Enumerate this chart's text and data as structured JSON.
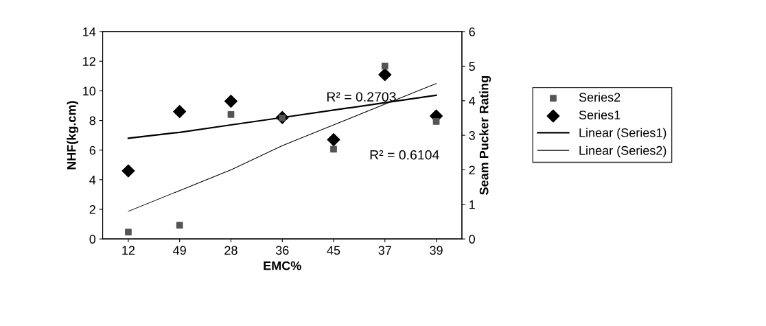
{
  "chart_data": {
    "type": "scatter",
    "xlabel": "EMC%",
    "ylabel": "NHF(kg.cm)",
    "y2label": "Seam Pucker Rating",
    "categories": [
      "12",
      "49",
      "28",
      "36",
      "45",
      "37",
      "39"
    ],
    "ylim": [
      0,
      14
    ],
    "yticks": [
      0,
      2,
      4,
      6,
      8,
      10,
      12,
      14
    ],
    "y2lim": [
      0,
      6
    ],
    "y2ticks": [
      0,
      1,
      2,
      3,
      4,
      5,
      6
    ],
    "grid": false,
    "legend": "right",
    "series": [
      {
        "name": "Series2",
        "marker": "square",
        "color": "#555555",
        "axis": "y2",
        "values": [
          0.2,
          0.4,
          3.6,
          3.5,
          2.6,
          5.0,
          3.4
        ]
      },
      {
        "name": "Series1",
        "marker": "diamond",
        "color": "#000000",
        "values": [
          4.6,
          8.6,
          9.3,
          8.2,
          6.7,
          11.1,
          8.3
        ]
      },
      {
        "name": "Linear (Series1)",
        "type": "line",
        "marker": "none",
        "line_style": "solid",
        "color": "#000000",
        "values": [
          6.8,
          7.2,
          7.7,
          8.2,
          8.7,
          9.2,
          9.7
        ]
      },
      {
        "name": "Linear (Series2)",
        "type": "line",
        "marker": "none",
        "line_style": "solid",
        "color": "#000000",
        "axis": "y2",
        "values": [
          0.8,
          1.4,
          2.0,
          2.7,
          3.3,
          3.9,
          4.5
        ]
      }
    ],
    "annotations": [
      "R² = 0.2703",
      "R² = 0.6104"
    ]
  }
}
